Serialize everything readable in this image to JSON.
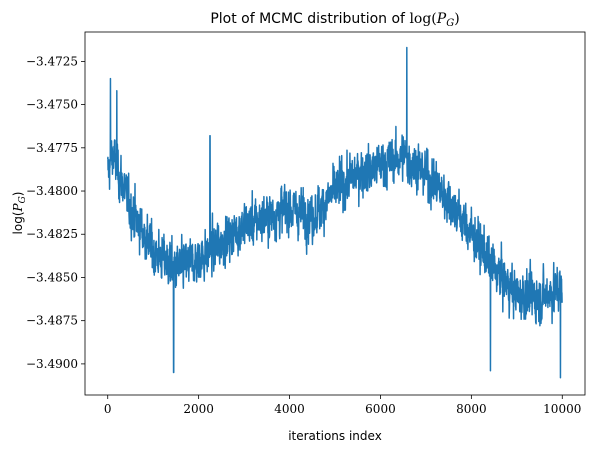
{
  "chart_data": {
    "type": "line",
    "title": "Plot of MCMC distribution of log(P_G)",
    "title_parts": {
      "prefix": "Plot of MCMC distribution of ",
      "fn": "log(",
      "var": "P",
      "sub": "G",
      "close": ")"
    },
    "xlabel": "iterations index",
    "ylabel": "log(P_G)",
    "ylabel_parts": {
      "fn": "log(",
      "var": "P",
      "sub": "G",
      "close": ")"
    },
    "xlim": [
      -500,
      10500
    ],
    "ylim": [
      -3.4918,
      -3.4708
    ],
    "grid": false,
    "legend": null,
    "line_color": "#1f77b4",
    "x_ticks": [
      0,
      2000,
      4000,
      6000,
      8000,
      10000
    ],
    "x_tick_labels": [
      "0",
      "2000",
      "4000",
      "6000",
      "8000",
      "10000"
    ],
    "y_ticks": [
      -3.4725,
      -3.475,
      -3.4775,
      -3.48,
      -3.4825,
      -3.485,
      -3.4875,
      -3.49
    ],
    "y_tick_labels": [
      "−3.4725",
      "−3.4750",
      "−3.4775",
      "−3.4800",
      "−3.4825",
      "−3.4850",
      "−3.4875",
      "−3.4900"
    ],
    "series": [
      {
        "n_points": 10000,
        "trend_x": [
          0,
          100,
          500,
          1000,
          1500,
          2000,
          2500,
          3000,
          3500,
          4000,
          4500,
          5000,
          5500,
          6000,
          6500,
          7000,
          7500,
          8000,
          8500,
          9000,
          9500,
          10000
        ],
        "trend_y": [
          -3.479,
          -3.4778,
          -3.481,
          -3.4835,
          -3.4845,
          -3.484,
          -3.483,
          -3.482,
          -3.4815,
          -3.481,
          -3.4815,
          -3.48,
          -3.479,
          -3.4785,
          -3.478,
          -3.479,
          -3.4805,
          -3.4825,
          -3.4845,
          -3.486,
          -3.4862,
          -3.4855
        ],
        "spread": 0.0012,
        "extremes": [
          {
            "x": 60,
            "y": -3.4735
          },
          {
            "x": 200,
            "y": -3.4742
          },
          {
            "x": 1450,
            "y": -3.4905
          },
          {
            "x": 2250,
            "y": -3.4768
          },
          {
            "x": 6580,
            "y": -3.4717
          },
          {
            "x": 8420,
            "y": -3.4904
          },
          {
            "x": 9960,
            "y": -3.4908
          }
        ]
      }
    ]
  }
}
